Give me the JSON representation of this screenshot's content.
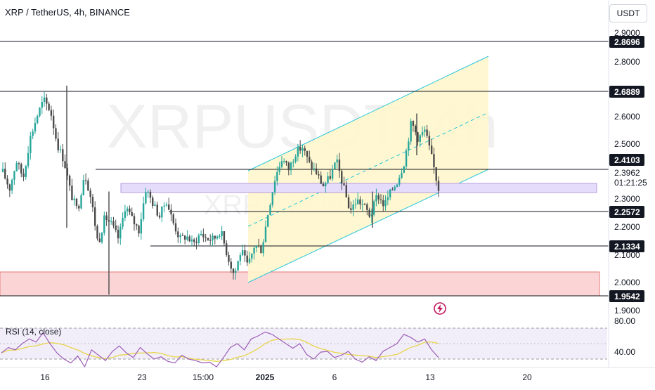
{
  "header": {
    "title": "XRP / TetherUS, 4h, BINANCE",
    "currency_button": "USDT"
  },
  "watermark": {
    "symbol": "XRPUSDT, 4h",
    "name": "XRP / TetherUS"
  },
  "price_axis": {
    "ticks": [
      "2.9000",
      "2.8000",
      "2.6000",
      "2.5000",
      "2.3000",
      "2.2000",
      "2.1000",
      "2.0000",
      "1.9000"
    ],
    "levels": [
      "2.8696",
      "2.6889",
      "2.4103",
      "2.2572",
      "2.1334",
      "1.9542"
    ],
    "current_price": "2.3962",
    "countdown": "01:21:25"
  },
  "time_axis": {
    "labels": [
      "16",
      "23",
      "15:00",
      "2025",
      "6",
      "13",
      "20"
    ]
  },
  "rsi": {
    "label": "RSI (14, close)",
    "ticks": [
      "80.00",
      "40.00"
    ]
  },
  "colors": {
    "candle_up": "#26a69a",
    "candle_down": "#4a4a4a",
    "channel_fill": "#fff6cc",
    "channel_line": "#26c6da",
    "demand_zone": "#fbd5d5",
    "demand_border": "#e07a7a",
    "rsi_line": "#9c5fb8",
    "rsi_ma": "#e8d44a"
  },
  "chart_data": {
    "type": "candlestick",
    "symbol": "XRPUSDT",
    "timeframe": "4h",
    "x": [
      "16",
      "23",
      "15:00",
      "2025",
      "6",
      "13",
      "20"
    ],
    "ylim": [
      1.88,
      2.93
    ],
    "horizontal_levels": [
      2.8696,
      2.6889,
      2.4103,
      2.2572,
      2.1334,
      1.9542
    ],
    "close_path": [
      2.4,
      2.34,
      2.44,
      2.38,
      2.52,
      2.6,
      2.66,
      2.62,
      2.5,
      2.44,
      2.32,
      2.26,
      2.4,
      2.3,
      2.14,
      2.24,
      2.21,
      2.16,
      2.28,
      2.23,
      2.19,
      2.34,
      2.29,
      2.24,
      2.3,
      2.22,
      2.16,
      2.17,
      2.14,
      2.18,
      2.16,
      2.16,
      2.19,
      2.1,
      2.03,
      2.12,
      2.06,
      2.14,
      2.12,
      2.26,
      2.38,
      2.45,
      2.41,
      2.47,
      2.49,
      2.43,
      2.4,
      2.35,
      2.38,
      2.44,
      2.35,
      2.26,
      2.3,
      2.28,
      2.24,
      2.32,
      2.28,
      2.33,
      2.37,
      2.44,
      2.58,
      2.52,
      2.55,
      2.45,
      2.34
    ],
    "rsi": {
      "range": [
        20,
        80
      ],
      "values": [
        48,
        55,
        52,
        60,
        66,
        62,
        74,
        60,
        48,
        40,
        35,
        44,
        30,
        52,
        45,
        38,
        50,
        57,
        48,
        42,
        55,
        47,
        40,
        43,
        37,
        35,
        45,
        40,
        38,
        35,
        36,
        30,
        42,
        55,
        60,
        52,
        66,
        70,
        75,
        72,
        66,
        60,
        54,
        60,
        46,
        40,
        49,
        50,
        42,
        45,
        50,
        40,
        36,
        43,
        38,
        50,
        55,
        60,
        72,
        68,
        62,
        66,
        52,
        42
      ]
    }
  }
}
